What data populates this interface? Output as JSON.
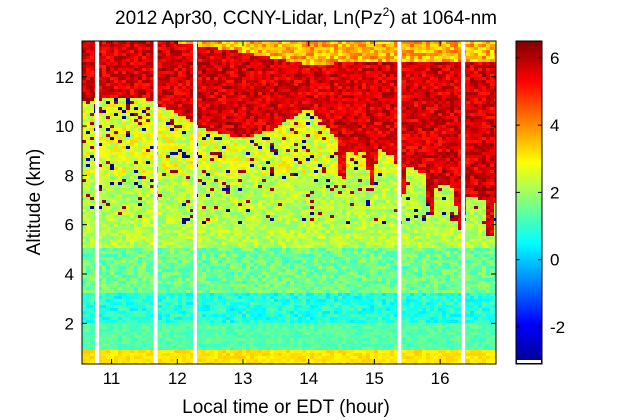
{
  "chart_data": {
    "type": "heatmap",
    "title_parts": {
      "prefix": "2012 Apr30, CCNY-Lidar, Ln(Pz",
      "superscript": "2",
      "suffix": ") at 1064-nm"
    },
    "xlabel": "Local time or EDT (hour)",
    "ylabel": "Altitude (km)",
    "xlim": [
      10.55,
      16.85
    ],
    "ylim": [
      0.35,
      13.45
    ],
    "xticks": [
      11,
      12,
      13,
      14,
      15,
      16
    ],
    "yticks": [
      2,
      4,
      6,
      8,
      10,
      12
    ],
    "colorbar": {
      "range": [
        -3.1,
        6.5
      ],
      "ticks": [
        -2,
        0,
        2,
        4,
        6
      ],
      "tick_labels": [
        "-2",
        "0",
        "2",
        "4",
        "6"
      ],
      "colormap": "jet"
    },
    "data_gaps_hours": [
      10.78,
      11.67,
      12.27,
      15.38,
      16.35
    ],
    "cloud_layer": {
      "description_values": "high Ln(Pz^2) values (~5 to 6.5)",
      "base_km_by_hour": [
        [
          10.6,
          11.0
        ],
        [
          11.0,
          11.2
        ],
        [
          11.5,
          11.1
        ],
        [
          12.0,
          10.5
        ],
        [
          12.5,
          9.8
        ],
        [
          13.0,
          9.5
        ],
        [
          13.5,
          9.9
        ],
        [
          14.0,
          10.8
        ],
        [
          14.5,
          9.3
        ],
        [
          14.7,
          8.8
        ],
        [
          15.0,
          9.2
        ],
        [
          15.5,
          8.4
        ],
        [
          15.8,
          8.0
        ],
        [
          16.1,
          7.6
        ],
        [
          16.4,
          7.2
        ],
        [
          16.8,
          6.9
        ]
      ],
      "top_km_by_hour": [
        [
          10.6,
          13.4
        ],
        [
          12.0,
          13.4
        ],
        [
          13.0,
          13.0
        ],
        [
          14.0,
          12.5
        ],
        [
          15.0,
          12.6
        ],
        [
          16.0,
          12.6
        ],
        [
          16.8,
          12.6
        ]
      ]
    }
  }
}
